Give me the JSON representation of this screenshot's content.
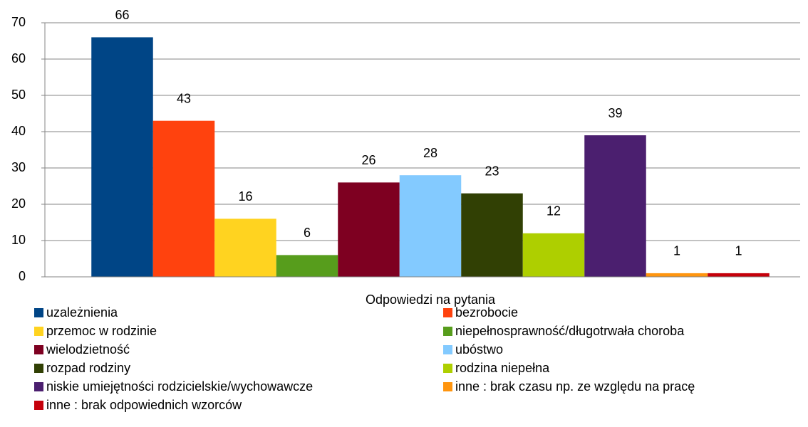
{
  "chart_data": {
    "type": "bar",
    "categories": [
      "Odpowiedzi na pytania"
    ],
    "series": [
      {
        "name": "uzależnienia",
        "color": "#004586",
        "values": [
          66
        ]
      },
      {
        "name": "bezrobocie",
        "color": "#ff420e",
        "values": [
          43
        ]
      },
      {
        "name": "przemoc w rodzinie",
        "color": "#ffd320",
        "values": [
          16
        ]
      },
      {
        "name": "niepełnosprawność/długotrwała choroba",
        "color": "#579d1c",
        "values": [
          6
        ]
      },
      {
        "name": "wielodzietność",
        "color": "#7e0021",
        "values": [
          26
        ]
      },
      {
        "name": "ubóstwo",
        "color": "#83caff",
        "values": [
          28
        ]
      },
      {
        "name": "rozpad rodziny",
        "color": "#314004",
        "values": [
          23
        ]
      },
      {
        "name": "rodzina niepełna",
        "color": "#aecf00",
        "values": [
          12
        ]
      },
      {
        "name": "niskie umiejętności rodzicielskie/wychowawcze",
        "color": "#4b1f6f",
        "values": [
          39
        ]
      },
      {
        "name": "inne : brak czasu np. ze względu na pracę",
        "color": "#ff950e",
        "values": [
          1
        ]
      },
      {
        "name": "inne : brak odpowiednich wzorców",
        "color": "#c5000b",
        "values": [
          1
        ]
      }
    ],
    "ylim": [
      0,
      70
    ],
    "yticks": [
      0,
      10,
      20,
      30,
      40,
      50,
      60,
      70
    ],
    "grid": true
  }
}
